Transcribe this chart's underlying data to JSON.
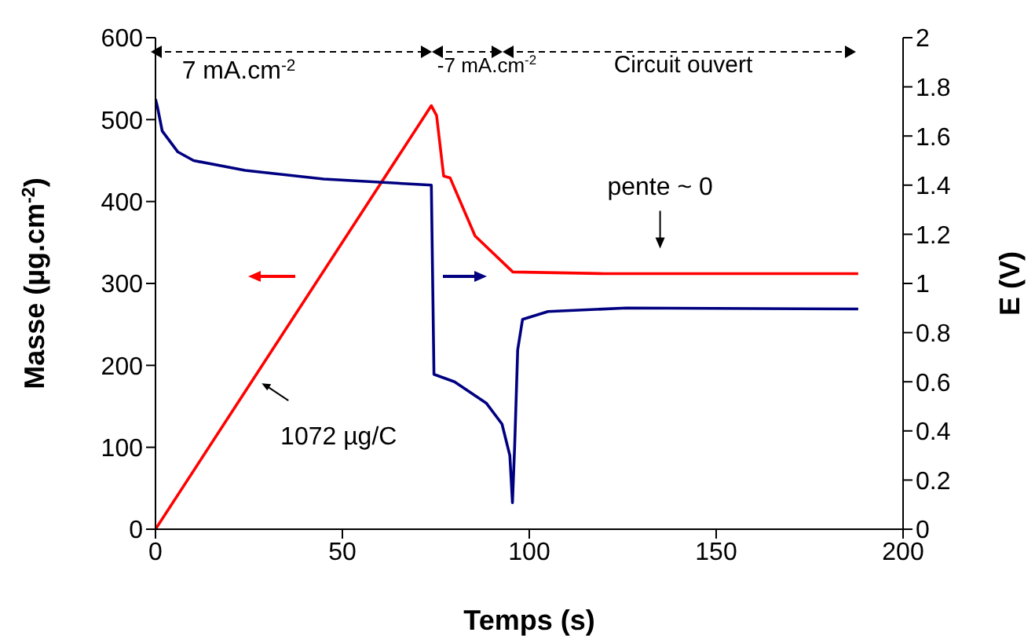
{
  "chart_data": {
    "type": "line",
    "xlabel": "Temps (s)",
    "ylabel": "Masse (µg.cm$^{-2}$)",
    "y2label": "E (V)",
    "xlim": [
      0,
      200
    ],
    "xticks": [
      0,
      50,
      100,
      150,
      200
    ],
    "ylim": [
      0,
      600
    ],
    "yticks": [
      0,
      100,
      200,
      300,
      400,
      500,
      600
    ],
    "y2lim": [
      0,
      2
    ],
    "y2ticks": [
      0,
      0.2,
      0.4,
      0.6,
      0.8,
      1,
      1.2,
      1.4,
      1.6,
      1.8,
      2
    ],
    "marker": "none",
    "line_style": "solid",
    "series": [
      {
        "color": "#ff0000",
        "x": [
          0,
          73.8,
          75.2,
          77.1,
          78.8,
          85.5,
          95.6,
          120,
          188
        ],
        "values": [
          0,
          517,
          505,
          431,
          429,
          358,
          314,
          312,
          312
        ]
      },
      {
        "color": "#000080",
        "axis": "y2",
        "x": [
          0,
          0.5,
          1.8,
          6,
          10.2,
          24,
          45,
          73.8,
          74.5,
          80,
          88.5,
          92.7,
          94.8,
          95.5,
          96.1,
          96.9,
          98.2,
          105,
          126,
          188
        ],
        "values": [
          1.75,
          1.72,
          1.62,
          1.535,
          1.5,
          1.46,
          1.425,
          1.4,
          0.63,
          0.6,
          0.513,
          0.428,
          0.3,
          0.108,
          0.343,
          0.73,
          0.854,
          0.886,
          0.9,
          0.896
        ]
      }
    ],
    "annotations": [
      "7 mA.cm$^{-2}$",
      "-7 mA.cm$^{-2}$",
      "Circuit ouvert",
      {
        "text": "1072 µg/C",
        "x": 28,
        "y": 180
      },
      {
        "text": "pente ~ 0",
        "x": 135,
        "y": 312
      }
    ]
  }
}
